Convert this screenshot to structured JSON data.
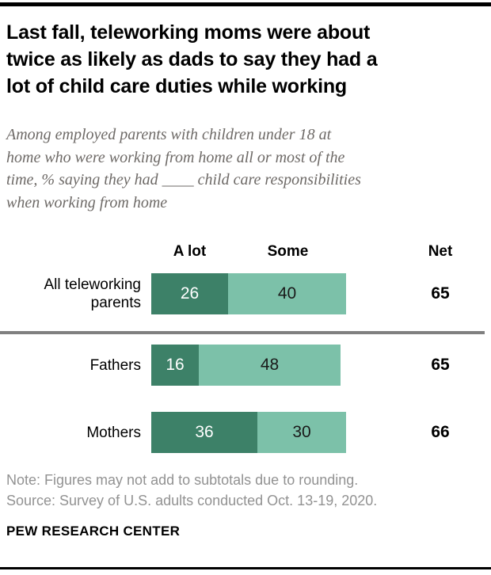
{
  "header": {
    "title_lines": [
      "Last fall, teleworking moms were about",
      "twice as likely as dads to say they had a",
      "lot of child care duties while working"
    ],
    "subtitle_lines": [
      "Among employed parents with children under 18 at",
      "home who were working from home all or most of the",
      "time, % saying they had ____ child care responsibilities",
      "when working from home"
    ]
  },
  "chart_data": {
    "type": "bar",
    "orientation": "horizontal",
    "stacked": true,
    "column_headers": [
      "A lot",
      "Some",
      "Net"
    ],
    "categories": [
      "All teleworking parents",
      "Fathers",
      "Mothers"
    ],
    "series": [
      {
        "name": "A lot",
        "color": "#3D8168",
        "values": [
          26,
          16,
          36
        ]
      },
      {
        "name": "Some",
        "color": "#7CC1A9",
        "values": [
          40,
          48,
          30
        ]
      }
    ],
    "net": [
      65,
      65,
      66
    ],
    "xlim": [
      0,
      66
    ],
    "grid": false,
    "legend_position": "column-headers-above-first-row",
    "value_labels": "inside-segments"
  },
  "col_headers": {
    "a_lot": "A lot",
    "some": "Some",
    "net": "Net"
  },
  "rows": [
    {
      "label": "All teleworking parents",
      "a_lot": 26,
      "some": 40,
      "net": 65
    },
    {
      "label": "Fathers",
      "a_lot": 16,
      "some": 48,
      "net": 65
    },
    {
      "label": "Mothers",
      "a_lot": 36,
      "some": 30,
      "net": 66
    }
  ],
  "footer": {
    "note": "Note: Figures may not add to subtotals due to rounding.",
    "source": "Source: Survey of U.S. adults conducted Oct. 13-19, 2020.",
    "brand": "PEW RESEARCH CENTER"
  },
  "colors": {
    "dark_green": "#3D8168",
    "light_green": "#7CC1A9",
    "divider_gray": "#808080",
    "rule_black": "#000000",
    "subtitle_gray": "#6E6A67",
    "note_gray": "#929292"
  }
}
